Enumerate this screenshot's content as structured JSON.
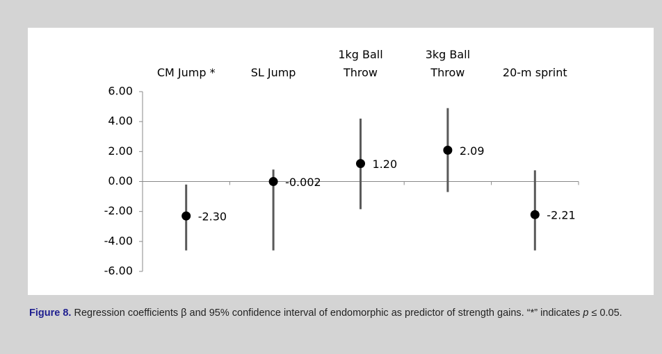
{
  "chart_data": {
    "type": "errorpoint",
    "categories": [
      "CM Jump *",
      "SL Jump",
      "1kg Ball\nThrow",
      "3kg Ball\nThrow",
      "20-m sprint"
    ],
    "values": [
      -2.3,
      -0.002,
      1.2,
      2.09,
      -2.21
    ],
    "value_labels": [
      "-2.30",
      "-0.002",
      "1.20",
      "2.09",
      "-2.21"
    ],
    "lower": [
      -4.6,
      -4.6,
      -1.85,
      -0.7,
      -4.6
    ],
    "upper": [
      -0.2,
      0.8,
      4.2,
      4.9,
      0.75
    ],
    "color": "#000000",
    "bar_color": "#595959",
    "ylim": [
      -6,
      6
    ],
    "yticks": [
      {
        "value": -6,
        "label": "-6.00"
      },
      {
        "value": -4,
        "label": "-4.00"
      },
      {
        "value": -2,
        "label": "-2.00"
      },
      {
        "value": 0,
        "label": "0.00"
      },
      {
        "value": 2,
        "label": "2.00"
      },
      {
        "value": 4,
        "label": "4.00"
      },
      {
        "value": 6,
        "label": "6.00"
      }
    ]
  },
  "caption": {
    "label": "Figure 8.",
    "text": "Regression coefficients β and 95% confidence interval of endomorphic as predictor of strength gains. “*” indicates",
    "italic": "p",
    "tail": "≤ 0.05."
  }
}
